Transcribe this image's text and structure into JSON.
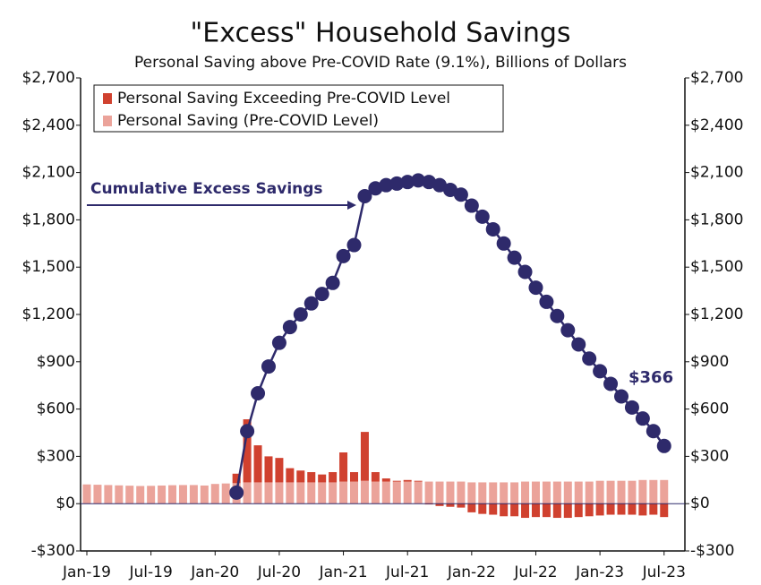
{
  "chart_data": {
    "type": "bar-line",
    "title": "\"Excess\" Household Savings",
    "subtitle": "Personal Saving above Pre-COVID Rate (9.1%), Billions of Dollars",
    "categories": [
      "Jan-19",
      null,
      null,
      null,
      null,
      null,
      "Jul-19",
      null,
      null,
      null,
      null,
      null,
      "Jan-20",
      null,
      null,
      null,
      null,
      null,
      "Jul-20",
      null,
      null,
      null,
      null,
      null,
      "Jan-21",
      null,
      null,
      null,
      null,
      null,
      "Jul-21",
      null,
      null,
      null,
      null,
      null,
      "Jan-22",
      null,
      null,
      null,
      null,
      null,
      "Jul-22",
      null,
      null,
      null,
      null,
      null,
      "Jan-23",
      null,
      null,
      null,
      null,
      null,
      "Jul-23"
    ],
    "series": [
      {
        "name": "Personal Saving (Pre-COVID Level)",
        "color": "#eba39a",
        "kind": "bar",
        "values": [
          122,
          120,
          118,
          116,
          114,
          112,
          113,
          115,
          117,
          118,
          118,
          115,
          125,
          128,
          130,
          135,
          135,
          135,
          135,
          135,
          135,
          135,
          135,
          135,
          140,
          140,
          145,
          140,
          140,
          140,
          140,
          140,
          140,
          140,
          140,
          140,
          135,
          135,
          135,
          135,
          135,
          140,
          140,
          140,
          140,
          140,
          140,
          140,
          145,
          145,
          145,
          145,
          150,
          150,
          150
        ]
      },
      {
        "name": "Personal Saving Exceeding Pre-COVID Level",
        "color": "#d0412f",
        "kind": "bar",
        "values": [
          0,
          0,
          0,
          0,
          0,
          0,
          0,
          0,
          0,
          0,
          0,
          0,
          0,
          0,
          60,
          400,
          235,
          165,
          155,
          90,
          75,
          65,
          50,
          65,
          185,
          60,
          310,
          60,
          20,
          5,
          10,
          5,
          -5,
          -15,
          -20,
          -25,
          -55,
          -65,
          -70,
          -80,
          -80,
          -90,
          -85,
          -85,
          -90,
          -90,
          -85,
          -80,
          -75,
          -70,
          -70,
          -70,
          -75,
          -70,
          -85
        ]
      },
      {
        "name": "Cumulative Excess Savings",
        "color": "#2e2a6b",
        "kind": "line",
        "values": [
          null,
          null,
          null,
          null,
          null,
          null,
          null,
          null,
          null,
          null,
          null,
          null,
          null,
          null,
          70,
          460,
          700,
          870,
          1020,
          1120,
          1200,
          1270,
          1330,
          1400,
          1570,
          1640,
          1950,
          2000,
          2020,
          2030,
          2040,
          2050,
          2040,
          2020,
          1990,
          1960,
          1890,
          1820,
          1740,
          1650,
          1560,
          1470,
          1370,
          1280,
          1190,
          1100,
          1010,
          920,
          840,
          760,
          680,
          610,
          540,
          460,
          366
        ]
      }
    ],
    "ylim": [
      -300,
      2700
    ],
    "yticks": [
      {
        "value": -300,
        "label": "-$300"
      },
      {
        "value": 0,
        "label": "$0"
      },
      {
        "value": 300,
        "label": "$300"
      },
      {
        "value": 600,
        "label": "$600"
      },
      {
        "value": 900,
        "label": "$900"
      },
      {
        "value": 1200,
        "label": "$1,200"
      },
      {
        "value": 1500,
        "label": "$1,500"
      },
      {
        "value": 1800,
        "label": "$1,800"
      },
      {
        "value": 2100,
        "label": "$2,100"
      },
      {
        "value": 2400,
        "label": "$2,400"
      },
      {
        "value": 2700,
        "label": "$2,700"
      }
    ],
    "y2lim": [
      -300,
      2700
    ],
    "y2ticks": [
      {
        "value": -300,
        "label": "-$300"
      },
      {
        "value": 0,
        "label": "$0"
      },
      {
        "value": 300,
        "label": "$300"
      },
      {
        "value": 600,
        "label": "$600"
      },
      {
        "value": 900,
        "label": "$900"
      },
      {
        "value": 1200,
        "label": "$1,200"
      },
      {
        "value": 1500,
        "label": "$1,500"
      },
      {
        "value": 1800,
        "label": "$1,800"
      },
      {
        "value": 2100,
        "label": "$2,100"
      },
      {
        "value": 2400,
        "label": "$2,400"
      },
      {
        "value": 2700,
        "label": "$2,700"
      }
    ],
    "legend": "upper left",
    "legend_order": [
      1,
      0
    ],
    "annotations": [
      "Cumulative Excess Savings",
      "$366"
    ]
  }
}
